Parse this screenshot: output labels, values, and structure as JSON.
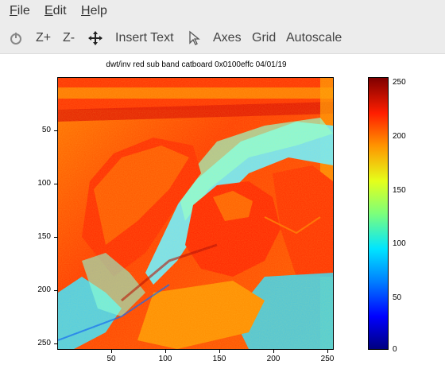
{
  "menu": {
    "file": {
      "key": "F",
      "rest": "ile"
    },
    "edit": {
      "key": "E",
      "rest": "dit"
    },
    "help": {
      "key": "H",
      "rest": "elp"
    }
  },
  "toolbar": {
    "reset_icon": "reset-icon",
    "zoom_in": "Z+",
    "zoom_out": "Z-",
    "pan_icon": "move-arrows-icon",
    "insert_text": "Insert Text",
    "pointer_icon": "pointer-icon",
    "axes": "Axes",
    "grid": "Grid",
    "autoscale": "Autoscale"
  },
  "plot": {
    "title": "dwt/inv red sub band catboard 0x0100effc 04/01/19",
    "y_ticks": [
      "50",
      "100",
      "150",
      "200",
      "250"
    ],
    "x_ticks": [
      "50",
      "100",
      "150",
      "200",
      "250"
    ]
  },
  "colorbar": {
    "ticks": [
      "250",
      "200",
      "150",
      "100",
      "50",
      "0"
    ]
  }
}
